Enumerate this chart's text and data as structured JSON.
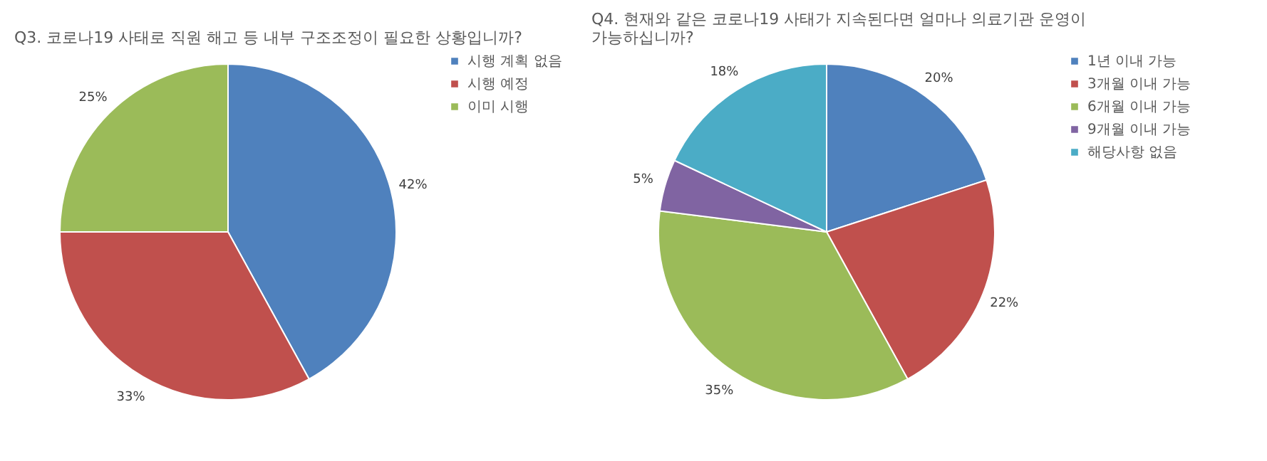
{
  "chart_data": [
    {
      "type": "pie",
      "title": "Q3. 코로나19 사태로 직원 해고 등 내부 구조조정이 필요한 상황입니까?",
      "categories": [
        "시행 계획 없음",
        "시행 예정",
        "이미 시행"
      ],
      "values": [
        42,
        33,
        25
      ],
      "colors": [
        "#4f81bd",
        "#c0504d",
        "#9bbb59"
      ],
      "value_labels": [
        "42%",
        "33%",
        "25%"
      ],
      "legend": "right"
    },
    {
      "type": "pie",
      "title": "Q4. 현재와 같은 코로나19 사태가 지속된다면 얼마나 의료기관 운영이\n가능하십니까?",
      "categories": [
        "1년 이내 가능",
        "3개월 이내 가능",
        "6개월 이내 가능",
        "9개월 이내 가능",
        "해당사항 없음"
      ],
      "values": [
        20,
        22,
        35,
        5,
        18
      ],
      "colors": [
        "#4f81bd",
        "#c0504d",
        "#9bbb59",
        "#8064a2",
        "#4bacc6"
      ],
      "value_labels": [
        "20%",
        "22%",
        "35%",
        "5%",
        "18%"
      ],
      "legend": "right"
    }
  ]
}
